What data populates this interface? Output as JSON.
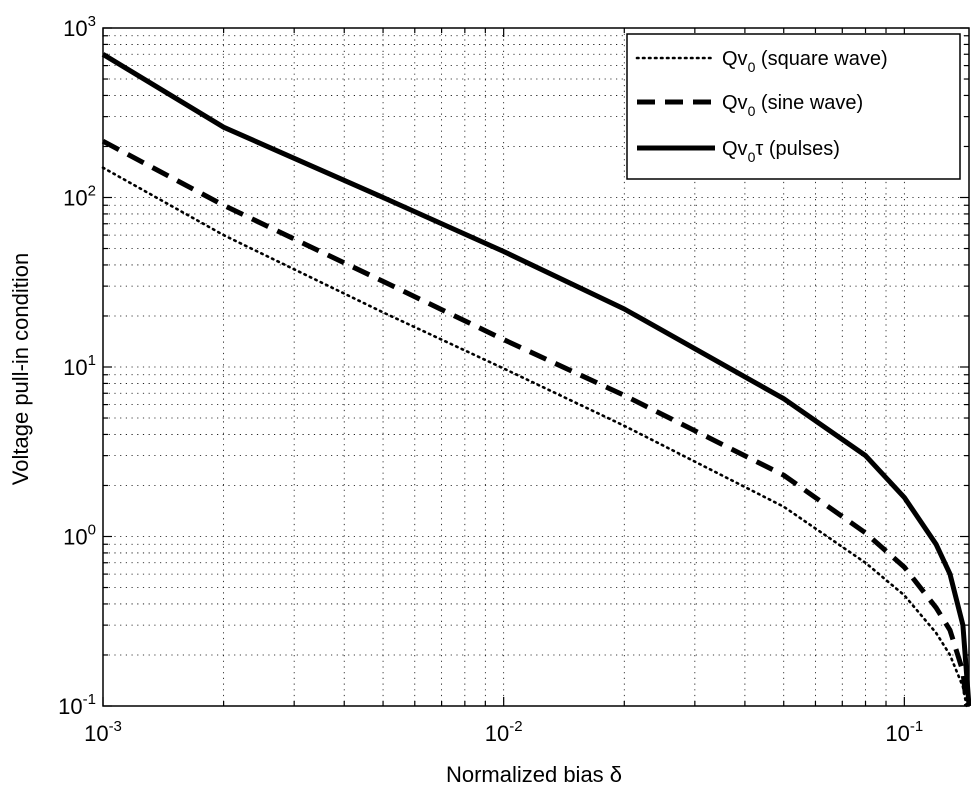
{
  "chart_data": {
    "type": "line",
    "xlabel": "Normalized bias δ",
    "ylabel": "Voltage pull-in condition",
    "xscale": "log",
    "yscale": "log",
    "xlim": [
      0.001,
      0.145
    ],
    "ylim": [
      0.1,
      1000
    ],
    "grid": true,
    "legend_position": "top-right",
    "x_ticks": [
      {
        "value": 0.001,
        "base": "10",
        "exp": "-3"
      },
      {
        "value": 0.01,
        "base": "10",
        "exp": "-2"
      },
      {
        "value": 0.1,
        "base": "10",
        "exp": "-1"
      }
    ],
    "y_ticks": [
      {
        "value": 0.1,
        "base": "10",
        "exp": "-1"
      },
      {
        "value": 1,
        "base": "10",
        "exp": "0"
      },
      {
        "value": 10,
        "base": "10",
        "exp": "1"
      },
      {
        "value": 100,
        "base": "10",
        "exp": "2"
      },
      {
        "value": 1000,
        "base": "10",
        "exp": "3"
      }
    ],
    "series": [
      {
        "name_main": "Qv",
        "name_sub": "0",
        "name_tail": " (square wave)",
        "style": "dotted",
        "x": [
          0.001,
          0.002,
          0.005,
          0.01,
          0.02,
          0.05,
          0.08,
          0.1,
          0.12,
          0.13,
          0.14,
          0.143
        ],
        "y": [
          150,
          60,
          21,
          9.8,
          4.5,
          1.5,
          0.7,
          0.45,
          0.27,
          0.2,
          0.13,
          0.1
        ]
      },
      {
        "name_main": "Qv",
        "name_sub": "0",
        "name_tail": " (sine wave)",
        "style": "dashed",
        "x": [
          0.001,
          0.002,
          0.005,
          0.01,
          0.02,
          0.05,
          0.08,
          0.1,
          0.12,
          0.13,
          0.14,
          0.143
        ],
        "y": [
          215,
          90,
          32,
          14.5,
          6.8,
          2.3,
          1.05,
          0.66,
          0.38,
          0.28,
          0.16,
          0.1
        ]
      },
      {
        "name_main": "Qv",
        "name_sub": "0",
        "name_tail": "τ (pulses)",
        "style": "solid",
        "x": [
          0.001,
          0.002,
          0.005,
          0.01,
          0.02,
          0.05,
          0.08,
          0.1,
          0.12,
          0.13,
          0.14,
          0.145
        ],
        "y": [
          700,
          260,
          100,
          48,
          22,
          6.5,
          3.0,
          1.7,
          0.9,
          0.6,
          0.3,
          0.1
        ]
      }
    ]
  }
}
